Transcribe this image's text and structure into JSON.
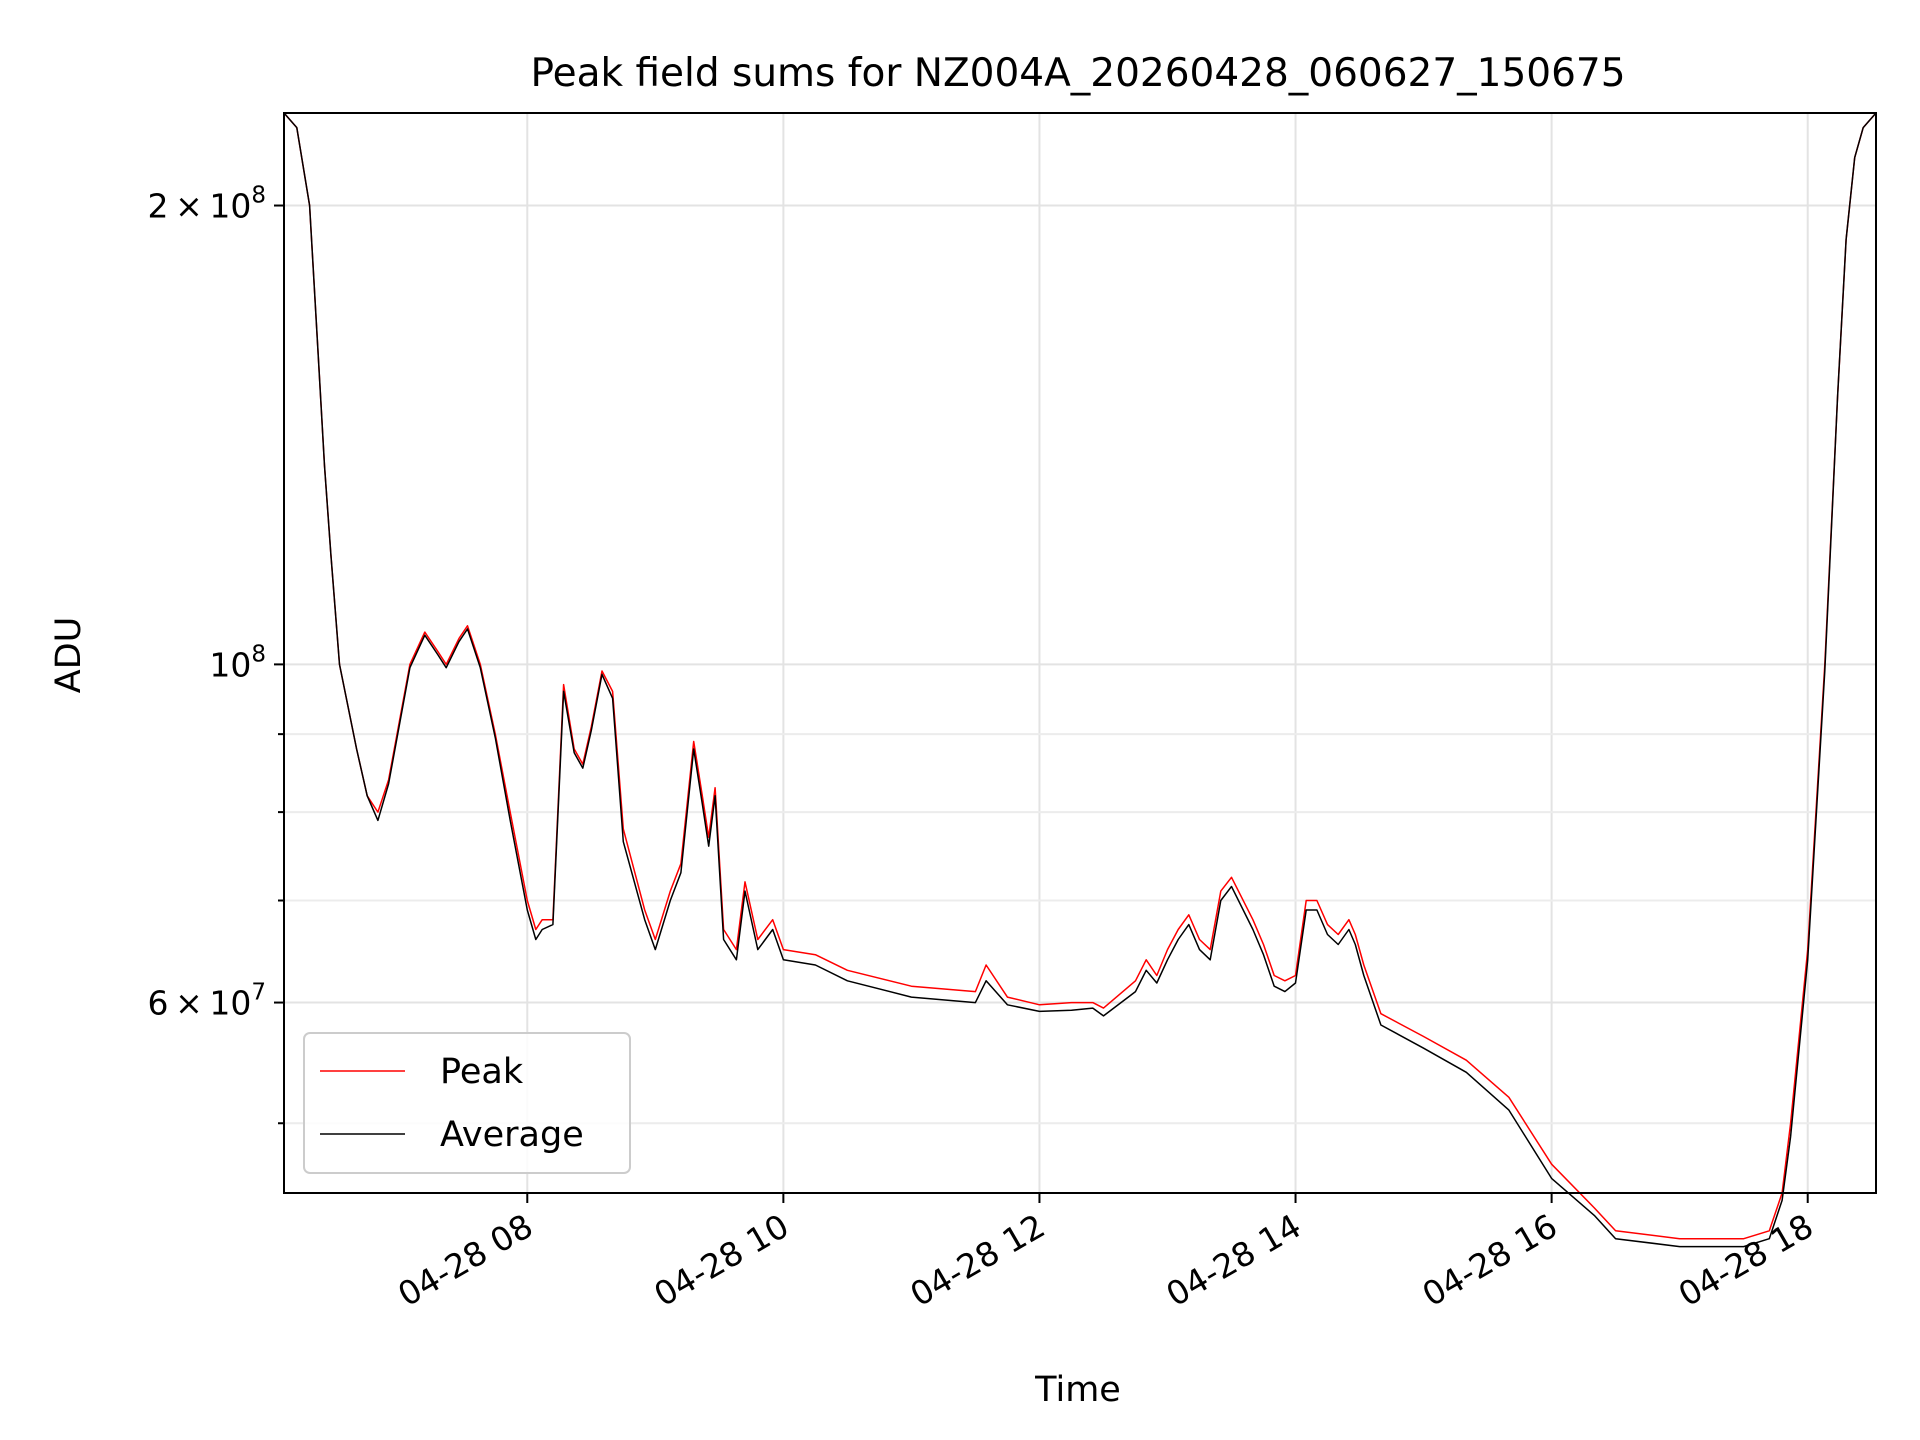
{
  "chart_data": {
    "type": "line",
    "title": "Peak field sums for NZ004A_20260428_060627_150675",
    "xlabel": "Time",
    "ylabel": "ADU",
    "yscale": "log",
    "xlim": [
      "2026-04-28 06:06",
      "2026-04-28 18:32"
    ],
    "ylim": [
      45000000,
      230000000
    ],
    "grid": true,
    "legend_position": "lower-left",
    "x_ticks": [
      {
        "value": "2026-04-28 08:00",
        "label": "04-28 08"
      },
      {
        "value": "2026-04-28 10:00",
        "label": "04-28 10"
      },
      {
        "value": "2026-04-28 12:00",
        "label": "04-28 12"
      },
      {
        "value": "2026-04-28 14:00",
        "label": "04-28 14"
      },
      {
        "value": "2026-04-28 16:00",
        "label": "04-28 16"
      },
      {
        "value": "2026-04-28 18:00",
        "label": "04-28 18"
      }
    ],
    "y_ticks": [
      {
        "value": 60000000,
        "mantissa": "6",
        "exponent": "7"
      },
      {
        "value": 100000000,
        "mantissa": "",
        "exponent": "8"
      },
      {
        "value": 200000000,
        "mantissa": "2",
        "exponent": "8"
      }
    ],
    "y_minor_ticks": [
      50000000,
      70000000,
      80000000,
      90000000
    ],
    "x": [
      "2026-04-28 06:06",
      "2026-04-28 06:12",
      "2026-04-28 06:18",
      "2026-04-28 06:22",
      "2026-04-28 06:25",
      "2026-04-28 06:28",
      "2026-04-28 06:32",
      "2026-04-28 06:40",
      "2026-04-28 06:45",
      "2026-04-28 06:50",
      "2026-04-28 06:55",
      "2026-04-28 07:05",
      "2026-04-28 07:12",
      "2026-04-28 07:18",
      "2026-04-28 07:22",
      "2026-04-28 07:28",
      "2026-04-28 07:32",
      "2026-04-28 07:38",
      "2026-04-28 07:45",
      "2026-04-28 07:52",
      "2026-04-28 08:00",
      "2026-04-28 08:04",
      "2026-04-28 08:07",
      "2026-04-28 08:12",
      "2026-04-28 08:17",
      "2026-04-28 08:22",
      "2026-04-28 08:26",
      "2026-04-28 08:30",
      "2026-04-28 08:35",
      "2026-04-28 08:40",
      "2026-04-28 08:45",
      "2026-04-28 08:55",
      "2026-04-28 09:00",
      "2026-04-28 09:07",
      "2026-04-28 09:12",
      "2026-04-28 09:18",
      "2026-04-28 09:22",
      "2026-04-28 09:25",
      "2026-04-28 09:28",
      "2026-04-28 09:32",
      "2026-04-28 09:38",
      "2026-04-28 09:42",
      "2026-04-28 09:48",
      "2026-04-28 09:55",
      "2026-04-28 10:00",
      "2026-04-28 10:15",
      "2026-04-28 10:30",
      "2026-04-28 11:00",
      "2026-04-28 11:30",
      "2026-04-28 11:35",
      "2026-04-28 11:45",
      "2026-04-28 12:00",
      "2026-04-28 12:15",
      "2026-04-28 12:25",
      "2026-04-28 12:30",
      "2026-04-28 12:45",
      "2026-04-28 12:50",
      "2026-04-28 12:55",
      "2026-04-28 13:00",
      "2026-04-28 13:05",
      "2026-04-28 13:10",
      "2026-04-28 13:15",
      "2026-04-28 13:20",
      "2026-04-28 13:25",
      "2026-04-28 13:30",
      "2026-04-28 13:40",
      "2026-04-28 13:45",
      "2026-04-28 13:50",
      "2026-04-28 13:55",
      "2026-04-28 14:00",
      "2026-04-28 14:05",
      "2026-04-28 14:10",
      "2026-04-28 14:15",
      "2026-04-28 14:20",
      "2026-04-28 14:25",
      "2026-04-28 14:28",
      "2026-04-28 14:32",
      "2026-04-28 14:40",
      "2026-04-28 15:00",
      "2026-04-28 15:20",
      "2026-04-28 15:40",
      "2026-04-28 16:00",
      "2026-04-28 16:20",
      "2026-04-28 16:30",
      "2026-04-28 17:00",
      "2026-04-28 17:30",
      "2026-04-28 17:42",
      "2026-04-28 17:48",
      "2026-04-28 17:52",
      "2026-04-28 18:00",
      "2026-04-28 18:08",
      "2026-04-28 18:14",
      "2026-04-28 18:18",
      "2026-04-28 18:22",
      "2026-04-28 18:26",
      "2026-04-28 18:32"
    ],
    "series": [
      {
        "name": "Peak",
        "color": "#ff0000",
        "values": [
          230000000,
          225000000,
          200000000,
          160000000,
          135000000,
          118000000,
          100000000,
          88000000,
          82000000,
          80000000,
          84000000,
          100000000,
          105000000,
          102000000,
          100000000,
          104000000,
          106000000,
          100000000,
          90000000,
          80000000,
          70000000,
          67000000,
          68000000,
          68000000,
          97000000,
          88000000,
          86000000,
          91000000,
          99000000,
          96000000,
          78000000,
          69000000,
          66000000,
          71000000,
          74000000,
          89000000,
          82000000,
          77000000,
          83000000,
          67000000,
          65000000,
          72000000,
          66000000,
          68000000,
          65000000,
          64500000,
          63000000,
          61500000,
          61000000,
          63500000,
          60500000,
          59800000,
          60000000,
          60000000,
          59500000,
          62000000,
          64000000,
          62500000,
          65000000,
          67000000,
          68500000,
          66000000,
          65000000,
          71000000,
          72500000,
          68000000,
          65500000,
          62500000,
          62000000,
          62500000,
          70000000,
          70000000,
          67500000,
          66500000,
          68000000,
          66500000,
          63500000,
          59000000,
          57000000,
          55000000,
          52000000,
          47000000,
          44000000,
          42500000,
          42000000,
          42000000,
          42500000,
          45000000,
          50000000,
          65000000,
          100000000,
          150000000,
          190000000,
          215000000,
          225000000,
          230000000
        ]
      },
      {
        "name": "Average",
        "color": "#000000",
        "values": [
          230000000,
          225000000,
          200000000,
          160000000,
          135000000,
          118000000,
          100000000,
          88000000,
          82000000,
          79000000,
          83500000,
          99500000,
          104500000,
          101500000,
          99500000,
          103500000,
          105500000,
          99500000,
          89500000,
          79000000,
          69000000,
          66000000,
          67000000,
          67500000,
          96000000,
          87500000,
          85500000,
          90500000,
          98500000,
          95000000,
          76500000,
          68000000,
          65000000,
          70000000,
          73000000,
          88000000,
          81000000,
          76000000,
          82000000,
          66000000,
          64000000,
          71000000,
          65000000,
          67000000,
          64000000,
          63500000,
          62000000,
          60500000,
          60000000,
          62000000,
          59800000,
          59200000,
          59300000,
          59500000,
          58800000,
          61000000,
          63000000,
          61800000,
          64000000,
          66000000,
          67500000,
          65000000,
          64000000,
          70000000,
          71500000,
          67000000,
          64500000,
          61500000,
          61000000,
          61800000,
          69000000,
          69000000,
          66500000,
          65500000,
          67000000,
          65500000,
          62500000,
          58000000,
          56000000,
          54000000,
          51000000,
          46000000,
          43500000,
          42000000,
          41500000,
          41500000,
          42000000,
          44500000,
          49000000,
          64000000,
          99000000,
          150000000,
          190000000,
          215000000,
          225000000,
          230000000
        ]
      }
    ]
  }
}
